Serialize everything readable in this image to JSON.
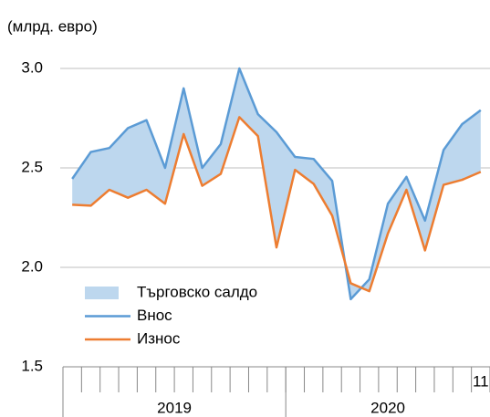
{
  "chart_data": {
    "type": "line",
    "y_label": "(млрд. евро)",
    "categories": [
      null,
      null,
      null,
      null,
      null,
      null,
      null,
      null,
      null,
      null,
      null,
      null,
      null,
      null,
      null,
      null,
      null,
      null,
      null,
      null,
      null,
      null,
      "11"
    ],
    "groups": [
      {
        "label": "2019",
        "count": 12
      },
      {
        "label": "2020",
        "count": 11
      }
    ],
    "band": {
      "name": "Търговско салдо",
      "color": "#bdd7ee"
    },
    "series": [
      {
        "name": "Внос",
        "color": "#5b9bd5",
        "values": [
          2.445,
          2.58,
          2.6,
          2.7,
          2.74,
          2.5,
          2.9,
          2.5,
          2.62,
          3.0,
          2.77,
          2.68,
          2.555,
          2.545,
          2.435,
          1.84,
          1.94,
          2.32,
          2.455,
          2.235,
          2.59,
          2.72,
          2.79
        ]
      },
      {
        "name": "Износ",
        "color": "#ed7d31",
        "values": [
          2.315,
          2.31,
          2.39,
          2.35,
          2.39,
          2.32,
          2.67,
          2.41,
          2.47,
          2.755,
          2.66,
          2.1,
          2.49,
          2.42,
          2.26,
          1.92,
          1.88,
          2.17,
          2.39,
          2.085,
          2.415,
          2.44,
          2.48
        ]
      }
    ],
    "ylim": [
      1.5,
      3.0
    ],
    "yticks": [
      {
        "value": 1.5,
        "label": "1.5"
      },
      {
        "value": 2.0,
        "label": "2.0"
      },
      {
        "value": 2.5,
        "label": "2.5"
      },
      {
        "value": 3.0,
        "label": "3.0"
      }
    ],
    "grid": true,
    "legend": "lower left"
  }
}
